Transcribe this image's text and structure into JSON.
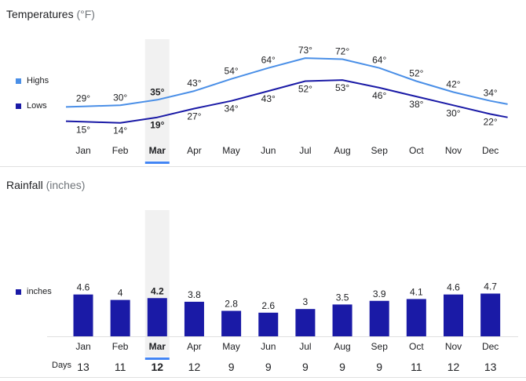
{
  "temperature": {
    "title": "Temperatures",
    "unit": "(°F)",
    "legend": {
      "highs": "Highs",
      "lows": "Lows"
    },
    "colors": {
      "highs": "#4a8fe7",
      "lows": "#1a1aa6"
    }
  },
  "rainfall": {
    "title": "Rainfall",
    "unit": "(inches)",
    "legend": {
      "inches": "inches"
    },
    "colors": {
      "bar": "#1a1aa6"
    }
  },
  "days_label": "Days",
  "selected_month": "Mar",
  "highlight_color": "#4285f4",
  "chart_data": [
    {
      "type": "line",
      "title": "Temperatures",
      "categories": [
        "Jan",
        "Feb",
        "Mar",
        "Apr",
        "May",
        "Jun",
        "Jul",
        "Aug",
        "Sep",
        "Oct",
        "Nov",
        "Dec"
      ],
      "series": [
        {
          "name": "Highs",
          "values": [
            29,
            30,
            35,
            43,
            54,
            64,
            73,
            72,
            64,
            52,
            42,
            34
          ],
          "labels": [
            "29°",
            "30°",
            "35°",
            "43°",
            "54°",
            "64°",
            "73°",
            "72°",
            "64°",
            "52°",
            "42°",
            "34°"
          ]
        },
        {
          "name": "Lows",
          "values": [
            15,
            14,
            19,
            27,
            34,
            43,
            52,
            53,
            46,
            38,
            30,
            22
          ],
          "labels": [
            "15°",
            "14°",
            "19°",
            "27°",
            "34°",
            "43°",
            "52°",
            "53°",
            "46°",
            "38°",
            "30°",
            "22°"
          ]
        }
      ],
      "legend": "left",
      "grid": false
    },
    {
      "type": "bar",
      "title": "Rainfall",
      "categories": [
        "Jan",
        "Feb",
        "Mar",
        "Apr",
        "May",
        "Jun",
        "Jul",
        "Aug",
        "Sep",
        "Oct",
        "Nov",
        "Dec"
      ],
      "series": [
        {
          "name": "inches",
          "values": [
            4.6,
            4,
            4.2,
            3.8,
            2.8,
            2.6,
            3,
            3.5,
            3.9,
            4.1,
            4.6,
            4.7
          ],
          "labels": [
            "4.6",
            "4",
            "4.2",
            "3.8",
            "2.8",
            "2.6",
            "3",
            "3.5",
            "3.9",
            "4.1",
            "4.6",
            "4.7"
          ]
        }
      ],
      "days": [
        "13",
        "11",
        "12",
        "12",
        "9",
        "9",
        "9",
        "9",
        "9",
        "11",
        "12",
        "13"
      ],
      "legend": "left",
      "grid": false
    }
  ]
}
